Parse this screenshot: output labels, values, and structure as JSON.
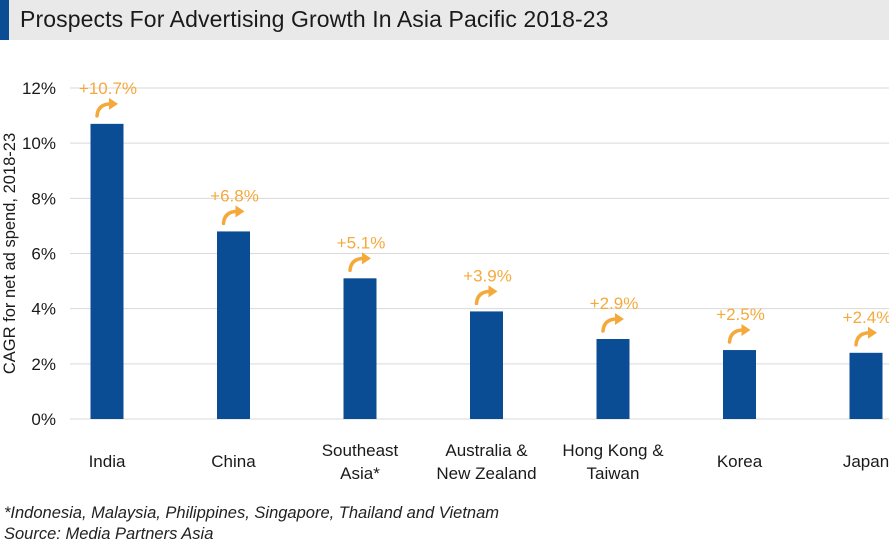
{
  "colors": {
    "bar": "#0b4d94",
    "accent": "#f5a93b",
    "title_accent": "#0b4d94",
    "grid": "#d9d9d9",
    "text": "#1a1a1a"
  },
  "header": {
    "title": "Prospects For Advertising Growth In Asia Pacific 2018-23"
  },
  "footnotes": {
    "countries": "*Indonesia, Malaysia, Philippines, Singapore, Thailand and Vietnam",
    "source": "Source: Media Partners Asia"
  },
  "chart_data": {
    "type": "bar",
    "title": "Prospects For Advertising Growth In Asia Pacific 2018-23",
    "ylabel": "CAGR for net ad spend, 2018-23",
    "ylim": [
      0,
      12
    ],
    "yticks": [
      0,
      2,
      4,
      6,
      8,
      10,
      12
    ],
    "ytick_labels": [
      "0%",
      "2%",
      "4%",
      "6%",
      "8%",
      "10%",
      "12%"
    ],
    "grid": true,
    "categories": [
      [
        "India"
      ],
      [
        "China"
      ],
      [
        "Southeast",
        "Asia*"
      ],
      [
        "Australia &",
        "New Zealand"
      ],
      [
        "Hong Kong &",
        "Taiwan"
      ],
      [
        "Korea"
      ],
      [
        "Japan"
      ]
    ],
    "values": [
      10.7,
      6.8,
      5.1,
      3.9,
      2.9,
      2.5,
      2.4
    ],
    "data_labels": [
      "+10.7%",
      "+6.8%",
      "+5.1%",
      "+3.9%",
      "+2.9%",
      "+2.5%",
      "+2.4%"
    ],
    "annotation_icon": "curved-up-arrow-icon"
  }
}
